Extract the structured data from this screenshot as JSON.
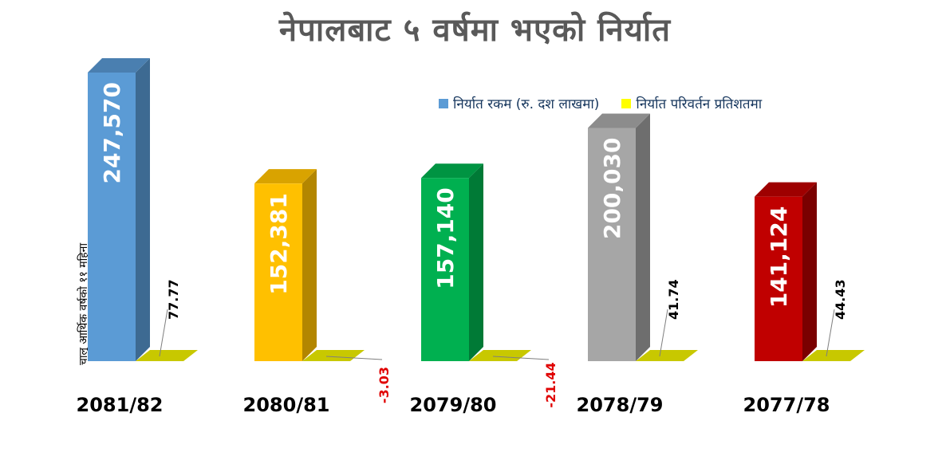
{
  "title": "नेपालबाट ५ वर्षमा भएको निर्यात",
  "note": "चालु आर्थिक वर्षको ११ महिना",
  "legend": {
    "export_amount": "निर्यात रकम (रु. दश लाखमा)",
    "export_change": "निर्यात परिवर्तन प्रतिशतमा"
  },
  "colors": {
    "legend_amount": "#5b9bd5",
    "legend_change": "#ffff00",
    "pct_floor": "#c8c800",
    "positive_text": "#000000",
    "negative_text": "#e00000"
  },
  "chart_data": {
    "type": "bar",
    "categories": [
      "2081/82",
      "2080/81",
      "2079/80",
      "2078/79",
      "2077/78"
    ],
    "series": [
      {
        "name": "निर्यात रकम (रु. दश लाखमा)",
        "values": [
          247570,
          152381,
          157140,
          200030,
          141124
        ],
        "labels": [
          "247,570",
          "152,381",
          "157,140",
          "200,030",
          "141,124"
        ]
      },
      {
        "name": "निर्यात परिवर्तन प्रतिशतमा",
        "values": [
          77.77,
          -3.03,
          -21.44,
          41.74,
          44.43
        ],
        "labels": [
          "77.77",
          "-3.03",
          "-21.44",
          "41.74",
          "44.43"
        ]
      }
    ],
    "bar_colors": [
      {
        "front": "#5b9bd5",
        "side": "#3d6a92",
        "top": "#4a7fb0"
      },
      {
        "front": "#ffc000",
        "side": "#b38600",
        "top": "#d9a300"
      },
      {
        "front": "#00b050",
        "side": "#007a36",
        "top": "#009442"
      },
      {
        "front": "#a6a6a6",
        "side": "#6e6e6e",
        "top": "#8c8c8c"
      },
      {
        "front": "#c00000",
        "side": "#7a0000",
        "top": "#9e0000"
      }
    ],
    "title": "नेपालबाट ५ वर्षमा भएको निर्यात",
    "ylim": [
      0,
      260000
    ],
    "grid": false,
    "legend_position": "top-right"
  }
}
